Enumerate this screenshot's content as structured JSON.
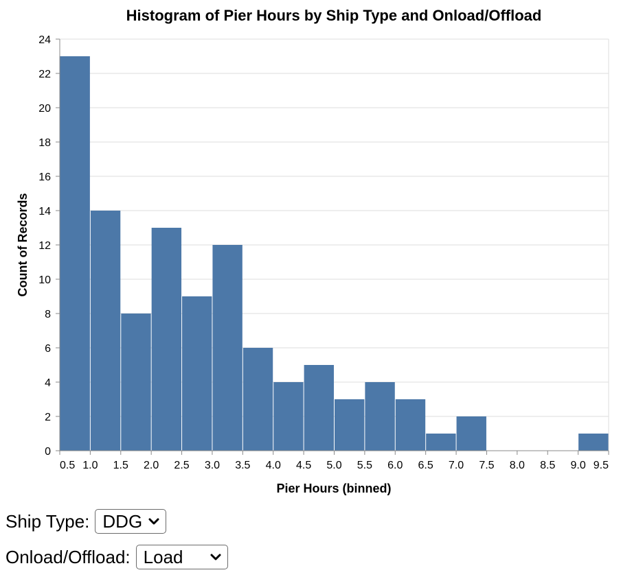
{
  "chart_data": {
    "type": "bar",
    "title": "Histogram of Pier Hours by Ship Type and Onload/Offload",
    "xlabel": "Pier Hours (binned)",
    "ylabel": "Count of Records",
    "x_ticks": [
      0.5,
      1.0,
      1.5,
      2.0,
      2.5,
      3.0,
      3.5,
      4.0,
      4.5,
      5.0,
      5.5,
      6.0,
      6.5,
      7.0,
      7.5,
      8.0,
      8.5,
      9.0,
      9.5
    ],
    "x_tick_labels": [
      "0.5",
      "1.0",
      "1.5",
      "2.0",
      "2.5",
      "3.0",
      "3.5",
      "4.0",
      "4.5",
      "5.0",
      "5.5",
      "6.0",
      "6.5",
      "7.0",
      "7.5",
      "8.0",
      "8.5",
      "9.0",
      "9.5"
    ],
    "xlim": [
      0.5,
      9.5
    ],
    "bin_step": 0.5,
    "bins": [
      {
        "start": 0.5,
        "end": 1.0,
        "count": 23
      },
      {
        "start": 1.0,
        "end": 1.5,
        "count": 14
      },
      {
        "start": 1.5,
        "end": 2.0,
        "count": 8
      },
      {
        "start": 2.0,
        "end": 2.5,
        "count": 13
      },
      {
        "start": 2.5,
        "end": 3.0,
        "count": 9
      },
      {
        "start": 3.0,
        "end": 3.5,
        "count": 12
      },
      {
        "start": 3.5,
        "end": 4.0,
        "count": 6
      },
      {
        "start": 4.0,
        "end": 4.5,
        "count": 4
      },
      {
        "start": 4.5,
        "end": 5.0,
        "count": 5
      },
      {
        "start": 5.0,
        "end": 5.5,
        "count": 3
      },
      {
        "start": 5.5,
        "end": 6.0,
        "count": 4
      },
      {
        "start": 6.0,
        "end": 6.5,
        "count": 3
      },
      {
        "start": 6.5,
        "end": 7.0,
        "count": 1
      },
      {
        "start": 7.0,
        "end": 7.5,
        "count": 2
      },
      {
        "start": 9.0,
        "end": 9.5,
        "count": 1
      }
    ],
    "y_ticks": [
      0,
      2,
      4,
      6,
      8,
      10,
      12,
      14,
      16,
      18,
      20,
      22,
      24
    ],
    "ylim": [
      0,
      24
    ],
    "grid": true,
    "bar_color": "#4c78a8",
    "grid_color": "#dddddd",
    "axis_color": "#888888"
  },
  "controls": {
    "ship_type": {
      "label": "Ship Type:",
      "selected": "DDG"
    },
    "onload_offload": {
      "label": "Onload/Offload:",
      "selected": "Load"
    }
  }
}
